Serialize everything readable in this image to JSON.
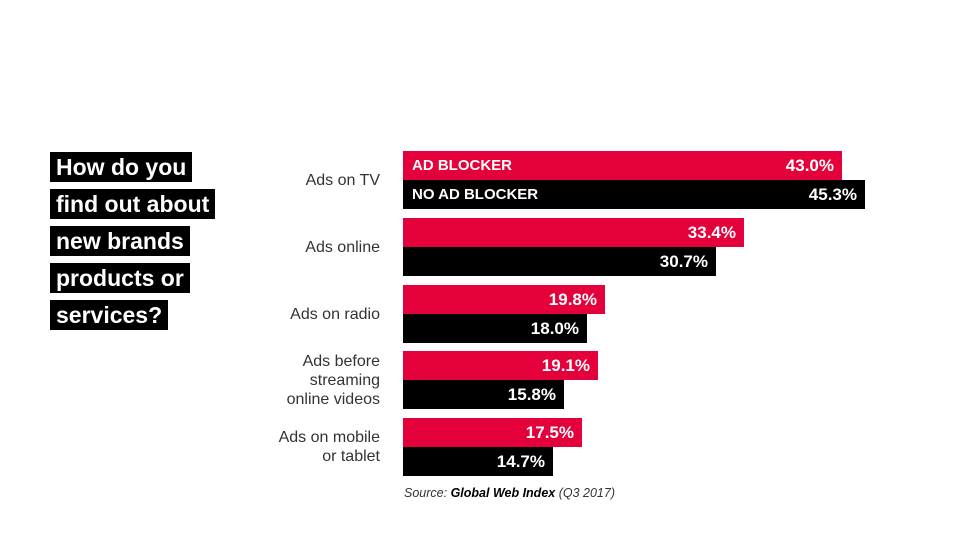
{
  "title_lines": [
    "How do you",
    "find out about",
    "new brands",
    "products or",
    "services?"
  ],
  "source": {
    "prefix": "Source:",
    "name": "Global Web Index",
    "suffix": "(Q3 2017)"
  },
  "colors": {
    "ad_blocker": "#e4003b",
    "no_ad_blocker": "#000000"
  },
  "chart_data": {
    "type": "bar",
    "orientation": "horizontal",
    "categories": [
      "Ads on TV",
      "Ads online",
      "Ads on radio",
      "Ads before streaming online videos",
      "Ads on mobile or tablet"
    ],
    "category_lines": [
      [
        "Ads on TV"
      ],
      [
        "Ads online"
      ],
      [
        "Ads on radio"
      ],
      [
        "Ads before",
        "streaming",
        "online videos"
      ],
      [
        "Ads on mobile",
        "or tablet"
      ]
    ],
    "series": [
      {
        "name": "AD BLOCKER",
        "values": [
          43.0,
          33.4,
          19.8,
          19.1,
          17.5
        ],
        "color": "#e4003b"
      },
      {
        "name": "NO AD BLOCKER",
        "values": [
          45.3,
          30.7,
          18.0,
          15.8,
          14.7
        ],
        "color": "#000000"
      }
    ],
    "value_suffix": "%",
    "xlim": [
      0,
      50
    ],
    "grid": false,
    "legend": "inside first bars"
  }
}
